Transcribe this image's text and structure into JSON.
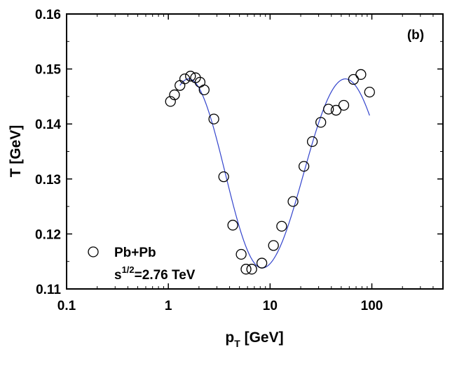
{
  "chart_data": {
    "type": "scatter",
    "panel_label": "(b)",
    "xlabel": {
      "main": "p",
      "sub": "T",
      "rest": " [GeV]"
    },
    "ylabel": "T [GeV]",
    "xscale": "log",
    "xlim": [
      0.1,
      500
    ],
    "ylim": [
      0.11,
      0.16
    ],
    "xticks": [
      {
        "value": 0.1,
        "label": "0.1"
      },
      {
        "value": 1,
        "label": "1"
      },
      {
        "value": 10,
        "label": "10"
      },
      {
        "value": 100,
        "label": "100"
      }
    ],
    "yticks": [
      {
        "value": 0.11,
        "label": "0.11"
      },
      {
        "value": 0.12,
        "label": "0.12"
      },
      {
        "value": 0.13,
        "label": "0.13"
      },
      {
        "value": 0.14,
        "label": "0.14"
      },
      {
        "value": 0.15,
        "label": "0.15"
      },
      {
        "value": 0.16,
        "label": "0.16"
      }
    ],
    "legend": {
      "position": "bottom-left",
      "series_label": "Pb+Pb",
      "energy_base": "s",
      "energy_exp": "1/2",
      "energy_value": "=2.76 TeV"
    },
    "series": [
      {
        "name": "Pb+Pb",
        "marker": "open-circle",
        "color": "#000000",
        "points": [
          {
            "x": 1.05,
            "y": 0.1441
          },
          {
            "x": 1.15,
            "y": 0.1453
          },
          {
            "x": 1.3,
            "y": 0.147
          },
          {
            "x": 1.45,
            "y": 0.1482
          },
          {
            "x": 1.65,
            "y": 0.1487
          },
          {
            "x": 1.85,
            "y": 0.1484
          },
          {
            "x": 2.05,
            "y": 0.1476
          },
          {
            "x": 2.25,
            "y": 0.1462
          },
          {
            "x": 2.8,
            "y": 0.1409
          },
          {
            "x": 3.5,
            "y": 0.1304
          },
          {
            "x": 4.3,
            "y": 0.1216
          },
          {
            "x": 5.2,
            "y": 0.1163
          },
          {
            "x": 5.8,
            "y": 0.1136
          },
          {
            "x": 6.6,
            "y": 0.1136
          },
          {
            "x": 8.3,
            "y": 0.1147
          },
          {
            "x": 10.8,
            "y": 0.1179
          },
          {
            "x": 13.0,
            "y": 0.1214
          },
          {
            "x": 16.8,
            "y": 0.1259
          },
          {
            "x": 21.5,
            "y": 0.1323
          },
          {
            "x": 26.0,
            "y": 0.1368
          },
          {
            "x": 31.5,
            "y": 0.1403
          },
          {
            "x": 37.5,
            "y": 0.1427
          },
          {
            "x": 44.5,
            "y": 0.1425
          },
          {
            "x": 53.0,
            "y": 0.1434
          },
          {
            "x": 66.0,
            "y": 0.1481
          },
          {
            "x": 78.0,
            "y": 0.149
          },
          {
            "x": 95.0,
            "y": 0.1458
          }
        ]
      },
      {
        "name": "fit",
        "type": "line",
        "color": "#3344cc",
        "x_range": [
          1.3,
          95
        ],
        "curve": {
          "y_min": 0.1138,
          "y_max": 0.1482,
          "log_x_max_1": 0.2,
          "log_x_min": 0.92,
          "log_x_max_2": 1.74,
          "log_x_end": 1.98
        }
      }
    ]
  }
}
